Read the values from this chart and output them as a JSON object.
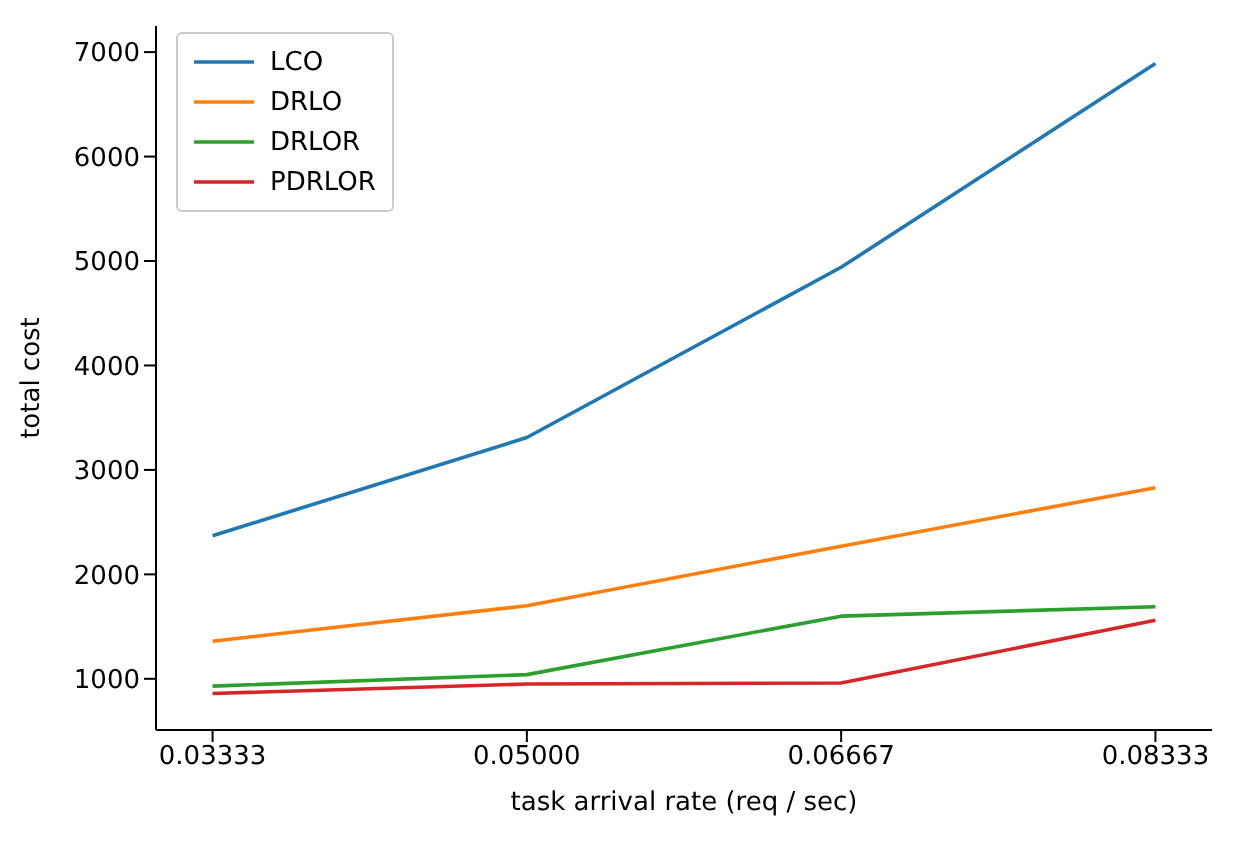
{
  "chart_data": {
    "type": "line",
    "xlabel": "task arrival rate (req / sec)",
    "ylabel": "total cost",
    "categories": [
      "0.03333",
      "0.05000",
      "0.06667",
      "0.08333"
    ],
    "series": [
      {
        "name": "LCO",
        "color": "#1f77b4",
        "values": [
          2370,
          3310,
          4940,
          6890
        ]
      },
      {
        "name": "DRLO",
        "color": "#ff7f0e",
        "values": [
          1360,
          1700,
          2270,
          2830
        ]
      },
      {
        "name": "DRLOR",
        "color": "#2ca02c",
        "values": [
          930,
          1040,
          1600,
          1690
        ]
      },
      {
        "name": "PDRLOR",
        "color": "#d62728",
        "values": [
          860,
          950,
          960,
          1560
        ]
      }
    ],
    "ylim": [
      510,
      7250
    ],
    "yticks": [
      1000,
      2000,
      3000,
      4000,
      5000,
      6000,
      7000
    ],
    "legend": "top left",
    "grid": false,
    "marker": "none",
    "line_style": "solid"
  }
}
